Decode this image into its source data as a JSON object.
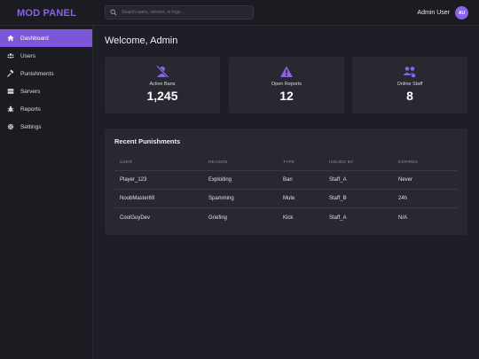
{
  "brand": "MOD PANEL",
  "search": {
    "placeholder": "Search users, servers, or logs..."
  },
  "user": {
    "name": "Admin User",
    "initials": "AU"
  },
  "colors": {
    "accent": "#7b56d9",
    "background": "#1e1e26",
    "card": "#282831"
  },
  "sidebar": {
    "items": [
      {
        "label": "Dashboard",
        "icon": "home-icon",
        "active": true
      },
      {
        "label": "Users",
        "icon": "users-icon",
        "active": false
      },
      {
        "label": "Punishments",
        "icon": "gavel-icon",
        "active": false
      },
      {
        "label": "Servers",
        "icon": "server-icon",
        "active": false
      },
      {
        "label": "Reports",
        "icon": "bug-icon",
        "active": false
      },
      {
        "label": "Settings",
        "icon": "gear-icon",
        "active": false
      }
    ]
  },
  "welcome": "Welcome, Admin",
  "stats": [
    {
      "label": "Active Bans",
      "value": "1,245",
      "icon": "ban-user-icon"
    },
    {
      "label": "Open Reports",
      "value": "12",
      "icon": "warning-icon"
    },
    {
      "label": "Online Staff",
      "value": "8",
      "icon": "staff-icon"
    }
  ],
  "recent": {
    "title": "Recent Punishments",
    "headers": [
      "USER",
      "REASON",
      "TYPE",
      "ISSUED BY",
      "EXPIRES"
    ],
    "rows": [
      [
        "Player_123",
        "Exploiting",
        "Ban",
        "Staff_A",
        "Never"
      ],
      [
        "NoobMaster69",
        "Spamming",
        "Mute",
        "Staff_B",
        "24h"
      ],
      [
        "CoolGuyDev",
        "Griefing",
        "Kick",
        "Staff_A",
        "N/A"
      ]
    ]
  }
}
